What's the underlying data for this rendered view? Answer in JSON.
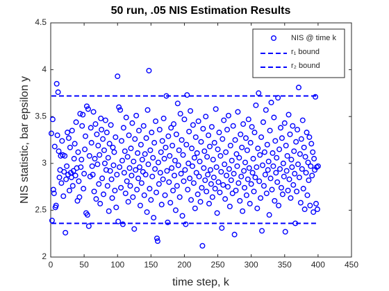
{
  "chart_data": {
    "type": "scatter",
    "title": "50 run, .05 NIS Estimation Results",
    "xlabel": "time step, k",
    "ylabel": "NIS statistic, bar epsilon y",
    "xlim": [
      0,
      450
    ],
    "xticks": [
      0,
      50,
      100,
      150,
      200,
      250,
      300,
      350,
      400,
      450
    ],
    "ylim": [
      2,
      4.5
    ],
    "yticks": [
      2,
      2.5,
      3,
      3.5,
      4,
      4.5
    ],
    "legend": "top-right",
    "series": [
      {
        "name": "NIS @ time k",
        "color": "#0000ff",
        "x": [
          1,
          2,
          3,
          4,
          5,
          6,
          7,
          8,
          9,
          10,
          11,
          12,
          13,
          14,
          15,
          16,
          17,
          18,
          19,
          20,
          21,
          22,
          23,
          24,
          25,
          26,
          27,
          28,
          29,
          30,
          31,
          32,
          33,
          34,
          35,
          36,
          37,
          38,
          39,
          40,
          41,
          42,
          43,
          44,
          45,
          46,
          47,
          48,
          49,
          50,
          51,
          52,
          53,
          54,
          55,
          56,
          57,
          58,
          59,
          60,
          61,
          62,
          63,
          64,
          65,
          66,
          67,
          68,
          69,
          70,
          71,
          72,
          73,
          74,
          75,
          76,
          77,
          78,
          79,
          80,
          81,
          82,
          83,
          84,
          85,
          86,
          87,
          88,
          89,
          90,
          91,
          92,
          93,
          94,
          95,
          96,
          97,
          98,
          99,
          100,
          101,
          102,
          103,
          104,
          105,
          106,
          107,
          108,
          109,
          110,
          111,
          112,
          113,
          114,
          115,
          116,
          117,
          118,
          119,
          120,
          121,
          122,
          123,
          124,
          125,
          126,
          127,
          128,
          129,
          130,
          131,
          132,
          133,
          134,
          135,
          136,
          137,
          138,
          139,
          140,
          141,
          142,
          143,
          144,
          145,
          146,
          147,
          148,
          149,
          150,
          151,
          152,
          153,
          154,
          155,
          156,
          157,
          158,
          159,
          160,
          161,
          162,
          163,
          164,
          165,
          166,
          167,
          168,
          169,
          170,
          171,
          172,
          173,
          174,
          175,
          176,
          177,
          178,
          179,
          180,
          181,
          182,
          183,
          184,
          185,
          186,
          187,
          188,
          189,
          190,
          191,
          192,
          193,
          194,
          195,
          196,
          197,
          198,
          199,
          200,
          201,
          202,
          203,
          204,
          205,
          206,
          207,
          208,
          209,
          210,
          211,
          212,
          213,
          214,
          215,
          216,
          217,
          218,
          219,
          220,
          221,
          222,
          223,
          224,
          225,
          226,
          227,
          228,
          229,
          230,
          231,
          232,
          233,
          234,
          235,
          236,
          237,
          238,
          239,
          240,
          241,
          242,
          243,
          244,
          245,
          246,
          247,
          248,
          249,
          250,
          251,
          252,
          253,
          254,
          255,
          256,
          257,
          258,
          259,
          260,
          261,
          262,
          263,
          264,
          265,
          266,
          267,
          268,
          269,
          270,
          271,
          272,
          273,
          274,
          275,
          276,
          277,
          278,
          279,
          280,
          281,
          282,
          283,
          284,
          285,
          286,
          287,
          288,
          289,
          290,
          291,
          292,
          293,
          294,
          295,
          296,
          297,
          298,
          299,
          300,
          301,
          302,
          303,
          304,
          305,
          306,
          307,
          308,
          309,
          310,
          311,
          312,
          313,
          314,
          315,
          316,
          317,
          318,
          319,
          320,
          321,
          322,
          323,
          324,
          325,
          326,
          327,
          328,
          329,
          330,
          331,
          332,
          333,
          334,
          335,
          336,
          337,
          338,
          339,
          340,
          341,
          342,
          343,
          344,
          345,
          346,
          347,
          348,
          349,
          350,
          351,
          352,
          353,
          354,
          355,
          356,
          357,
          358,
          359,
          360,
          361,
          362,
          363,
          364,
          365,
          366,
          367,
          368,
          369,
          370,
          371,
          372,
          373,
          374,
          375,
          376,
          377,
          378,
          379,
          380,
          381,
          382,
          383,
          384,
          385,
          386,
          387,
          388,
          389,
          390,
          391,
          392,
          393,
          394,
          395,
          396,
          397,
          398,
          399,
          400
        ],
        "values": [
          3.32,
          2.39,
          3.47,
          2.72,
          2.68,
          3.18,
          2.53,
          2.55,
          3.85,
          3.3,
          3.76,
          3.13,
          2.85,
          2.93,
          3.08,
          2.79,
          3.24,
          3.09,
          2.65,
          2.91,
          3.08,
          2.26,
          2.83,
          2.97,
          3.33,
          2.88,
          3.27,
          2.71,
          3.17,
          2.9,
          2.85,
          3.35,
          2.76,
          2.92,
          3.05,
          3.21,
          2.87,
          3.44,
          2.95,
          2.6,
          3.12,
          2.81,
          2.64,
          3.53,
          2.96,
          3.04,
          3.4,
          3.52,
          2.73,
          2.89,
          3.15,
          3.29,
          2.47,
          3.61,
          2.45,
          3.58,
          2.33,
          3.08,
          2.86,
          3.38,
          3.22,
          2.97,
          2.88,
          3.55,
          2.7,
          3.05,
          3.42,
          2.62,
          3.31,
          2.99,
          3.19,
          2.78,
          3.09,
          2.57,
          3.48,
          3.36,
          2.84,
          3.26,
          2.67,
          3.14,
          3.0,
          3.46,
          2.93,
          3.33,
          2.76,
          3.06,
          2.49,
          3.21,
          2.92,
          3.41,
          2.83,
          2.63,
          3.17,
          2.98,
          3.12,
          2.71,
          3.28,
          2.53,
          2.88,
          3.93,
          2.38,
          3.6,
          2.96,
          3.57,
          2.74,
          3.24,
          3.03,
          2.35,
          3.38,
          2.9,
          3.13,
          2.68,
          3.49,
          2.81,
          3.07,
          2.59,
          3.3,
          2.95,
          2.76,
          3.16,
          2.87,
          3.43,
          2.64,
          3.02,
          2.3,
          3.26,
          2.93,
          3.51,
          2.72,
          3.11,
          2.84,
          3.35,
          2.96,
          2.55,
          3.2,
          2.79,
          3.04,
          2.91,
          3.4,
          2.66,
          3.1,
          2.88,
          3.27,
          2.48,
          3.57,
          2.99,
          3.99,
          2.73,
          3.14,
          2.61,
          3.33,
          2.86,
          3.06,
          2.42,
          3.22,
          2.94,
          3.45,
          2.69,
          2.2,
          2.17,
          3.01,
          2.78,
          3.36,
          2.9,
          3.12,
          2.56,
          3.24,
          2.83,
          3.48,
          3.05,
          2.66,
          3.17,
          3.72,
          2.92,
          2.37,
          3.29,
          2.8,
          3.08,
          2.58,
          3.38,
          2.95,
          3.19,
          2.71,
          3.42,
          2.87,
          3.03,
          2.5,
          3.31,
          2.76,
          3.64,
          2.98,
          3.14,
          2.64,
          3.53,
          2.89,
          3.25,
          2.44,
          3.09,
          2.81,
          3.47,
          2.93,
          2.35,
          3.2,
          3.73,
          2.72,
          3.0,
          3.34,
          2.84,
          3.56,
          2.61,
          3.16,
          2.97,
          3.41,
          2.79,
          3.06,
          2.52,
          3.28,
          2.9,
          3.11,
          2.67,
          3.45,
          2.86,
          3.02,
          2.59,
          3.23,
          2.74,
          2.12,
          3.37,
          2.95,
          3.13,
          2.82,
          3.5,
          2.7,
          3.07,
          2.88,
          3.3,
          2.57,
          3.18,
          2.93,
          2.78,
          3.39,
          2.64,
          3.04,
          2.85,
          3.22,
          2.73,
          3.58,
          2.96,
          2.47,
          3.15,
          2.8,
          3.33,
          2.69,
          3.08,
          2.91,
          2.31,
          3.26,
          2.77,
          3.46,
          2.99,
          2.62,
          3.12,
          2.87,
          3.36,
          2.75,
          3.51,
          2.94,
          2.54,
          3.19,
          2.82,
          3.03,
          2.68,
          3.4,
          2.89,
          2.24,
          3.25,
          2.71,
          3.1,
          2.97,
          3.55,
          2.79,
          3.06,
          2.6,
          3.31,
          2.86,
          3.17,
          2.49,
          3.42,
          2.92,
          2.74,
          3.01,
          3.27,
          2.66,
          3.14,
          2.83,
          3.47,
          2.95,
          2.57,
          3.22,
          2.78,
          3.39,
          2.9,
          3.05,
          2.7,
          3.33,
          2.85,
          3.62,
          2.96,
          2.52,
          3.16,
          3.75,
          2.81,
          3.09,
          2.63,
          3.28,
          2.28,
          2.98,
          3.44,
          2.76,
          3.12,
          2.88,
          3.57,
          2.68,
          3.2,
          2.93,
          3.02,
          2.45,
          3.35,
          2.84,
          3.65,
          2.72,
          3.11,
          2.97,
          3.49,
          2.6,
          3.24,
          2.9,
          3.06,
          2.8,
          3.7,
          2.55,
          3.15,
          2.94,
          3.38,
          2.74,
          3.27,
          2.67,
          3.0,
          2.86,
          3.43,
          2.27,
          3.19,
          2.92,
          3.08,
          2.71,
          3.52,
          2.83,
          3.31,
          2.63,
          3.04,
          2.96,
          3.4,
          2.77,
          3.13,
          2.89,
          2.36,
          3.23,
          2.7,
          3.36,
          2.99,
          3.81,
          2.85,
          3.1,
          2.58,
          3.26,
          2.94,
          3.46,
          2.73,
          3.17,
          2.51,
          3.07,
          2.9,
          3.33,
          2.66,
          3.01,
          2.82,
          3.28,
          2.55,
          2.97,
          3.21,
          2.87,
          3.12,
          2.48,
          3.05,
          2.93,
          3.71,
          2.57,
          2.96,
          2.51,
          2.97
        ]
      }
    ],
    "lines": [
      {
        "name": "r₁ bound",
        "color": "#0000ff",
        "x": [
          1,
          400
        ],
        "value": 3.72
      },
      {
        "name": "r₂ bound",
        "color": "#0000ff",
        "x": [
          1,
          400
        ],
        "value": 2.36
      }
    ]
  }
}
